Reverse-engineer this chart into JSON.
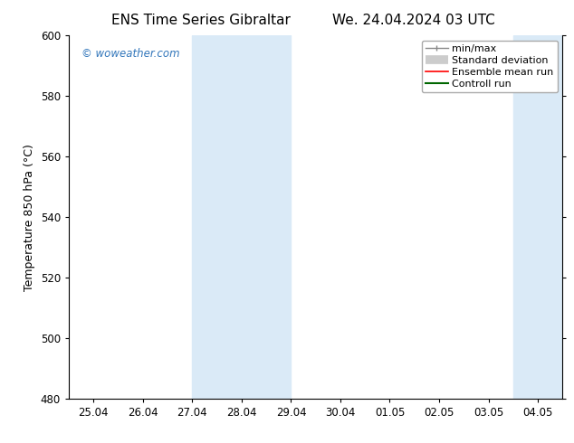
{
  "title": "ENS Time Series Gibraltar",
  "title2": "We. 24.04.2024 03 UTC",
  "ylabel": "Temperature 850 hPa (°C)",
  "ylim": [
    480,
    600
  ],
  "yticks": [
    480,
    500,
    520,
    540,
    560,
    580,
    600
  ],
  "xtick_labels": [
    "25.04",
    "26.04",
    "27.04",
    "28.04",
    "29.04",
    "30.04",
    "01.05",
    "02.05",
    "03.05",
    "04.05"
  ],
  "xtick_positions": [
    0,
    1,
    2,
    3,
    4,
    5,
    6,
    7,
    8,
    9
  ],
  "xlim": [
    -0.5,
    9.5
  ],
  "shaded_bands": [
    {
      "xmin": 2,
      "xmax": 4,
      "color": "#daeaf7"
    },
    {
      "xmin": 8.5,
      "xmax": 10,
      "color": "#daeaf7"
    }
  ],
  "watermark": "© woweather.com",
  "watermark_color": "#3377bb",
  "bg_color": "#ffffff",
  "title_fontsize": 11,
  "tick_fontsize": 8.5,
  "ylabel_fontsize": 9,
  "legend_fontsize": 8
}
